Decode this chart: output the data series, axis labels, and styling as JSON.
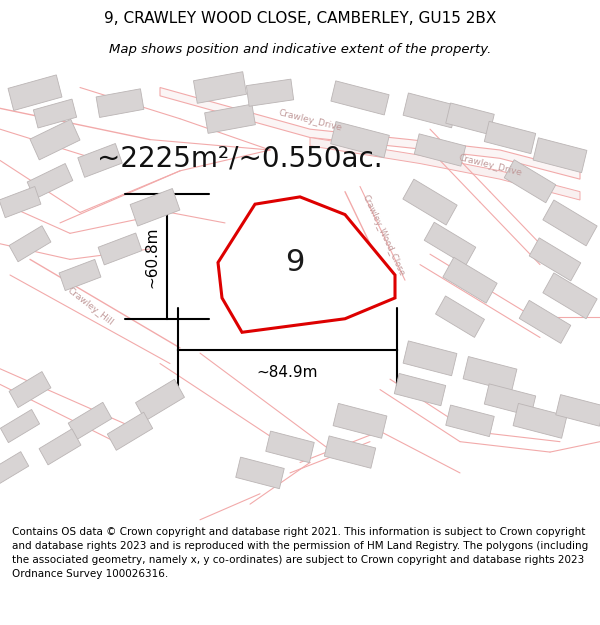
{
  "title": "9, CRAWLEY WOOD CLOSE, CAMBERLEY, GU15 2BX",
  "subtitle": "Map shows position and indicative extent of the property.",
  "area_text": "~2225m²/~0.550ac.",
  "width_label": "~84.9m",
  "height_label": "~60.8m",
  "plot_number": "9",
  "footer": "Contains OS data © Crown copyright and database right 2021. This information is subject to Crown copyright and database rights 2023 and is reproduced with the permission of HM Land Registry. The polygons (including the associated geometry, namely x, y co-ordinates) are subject to Crown copyright and database rights 2023 Ordnance Survey 100026316.",
  "bg_color": "#ffffff",
  "road_color": "#f2aaaa",
  "road_fill": "#f9f0f0",
  "building_fill": "#d8d4d4",
  "building_edge": "#bbb5b5",
  "plot_line_color": "#dd0000",
  "dim_line_color": "#000000",
  "text_color": "#000000",
  "road_label_color": "#c09898",
  "figsize": [
    6.0,
    6.25
  ],
  "dpi": 100,
  "title_fontsize": 11,
  "subtitle_fontsize": 9.5,
  "area_fontsize": 20,
  "dim_fontsize": 11,
  "plot_num_fontsize": 22,
  "footer_fontsize": 7.5
}
